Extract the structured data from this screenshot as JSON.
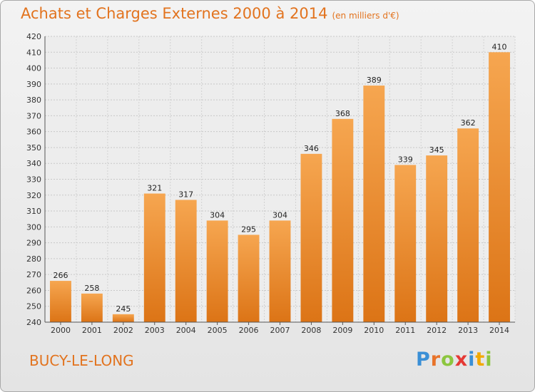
{
  "chart_data": {
    "type": "bar",
    "title": "Achats et Charges Externes 2000 à 2014",
    "subtitle": "(en milliers d'€)",
    "categories": [
      "2000",
      "2001",
      "2002",
      "2003",
      "2004",
      "2005",
      "2006",
      "2007",
      "2008",
      "2009",
      "2010",
      "2011",
      "2012",
      "2013",
      "2014"
    ],
    "values": [
      266,
      258,
      245,
      321,
      317,
      304,
      295,
      304,
      346,
      368,
      389,
      339,
      345,
      362,
      410
    ],
    "ylim": [
      240,
      420
    ],
    "yticks": [
      240,
      250,
      260,
      270,
      280,
      290,
      300,
      310,
      320,
      330,
      340,
      350,
      360,
      370,
      380,
      390,
      400,
      410,
      420
    ],
    "xlabel": "",
    "ylabel": "",
    "grid": true,
    "bar_color": "#f49d45",
    "bar_color_dark": "#e07a1f"
  },
  "place": "BUCY-LE-LONG",
  "brand": {
    "letters": [
      "P",
      "r",
      "o",
      "x",
      "i",
      "t",
      "i"
    ],
    "colors": [
      "#3a8fd6",
      "#e8732a",
      "#8cc63f",
      "#e53935",
      "#3a8fd6",
      "#f2a900",
      "#8cc63f"
    ]
  }
}
